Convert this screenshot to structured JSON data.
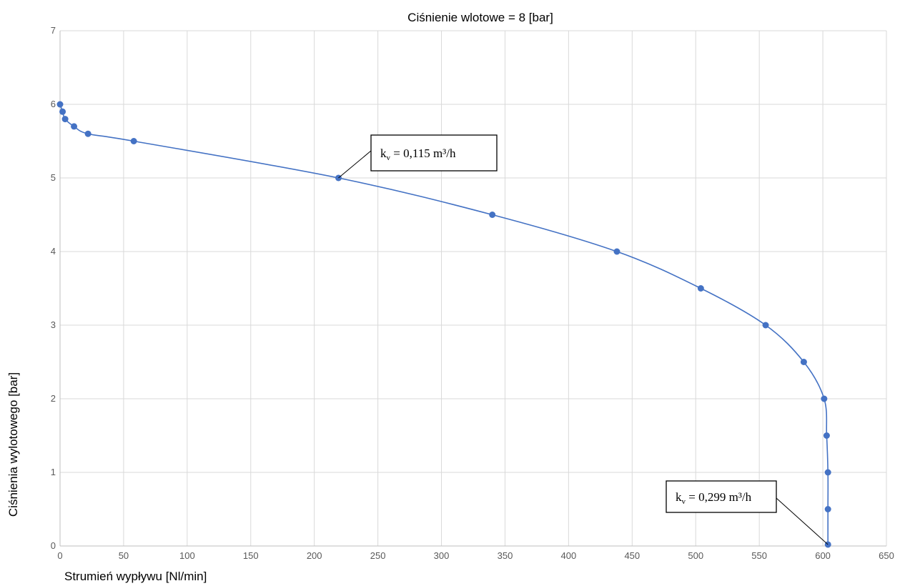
{
  "chart_data": {
    "type": "scatter",
    "title": "Ciśnienie wlotowe = 8 [bar]",
    "xlabel": "Strumień wypływu [Nl/min]",
    "ylabel": "Ciśnienia wylotowego [bar]",
    "xlim": [
      0,
      650
    ],
    "ylim": [
      0,
      7
    ],
    "x_ticks": [
      "0",
      "50",
      "100",
      "150",
      "200",
      "250",
      "300",
      "350",
      "400",
      "450",
      "500",
      "550",
      "600",
      "650"
    ],
    "y_ticks": [
      "0",
      "1",
      "2",
      "3",
      "4",
      "5",
      "6",
      "7"
    ],
    "grid": true,
    "line": "smooth",
    "color": "#4472C4",
    "series": [
      {
        "points": [
          [
            0,
            6.0
          ],
          [
            2,
            5.9
          ],
          [
            4,
            5.8
          ],
          [
            11,
            5.7
          ],
          [
            22,
            5.6
          ],
          [
            58,
            5.5
          ],
          [
            219,
            5.0
          ],
          [
            340,
            4.5
          ],
          [
            438,
            4.0
          ],
          [
            504,
            3.5
          ],
          [
            555,
            3.0
          ],
          [
            585,
            2.5
          ],
          [
            601,
            2.0
          ],
          [
            603,
            1.5
          ],
          [
            604,
            1.0
          ],
          [
            604,
            0.5
          ],
          [
            604,
            0.02
          ]
        ]
      }
    ],
    "annotations": [
      {
        "k": "k",
        "sub": "v",
        "rest": " = 0,115 m³/h",
        "x": 219,
        "y": 5.0
      },
      {
        "k": "k",
        "sub": "v",
        "rest": " = 0,299 m³/h",
        "x": 604,
        "y": 0.02
      }
    ]
  }
}
